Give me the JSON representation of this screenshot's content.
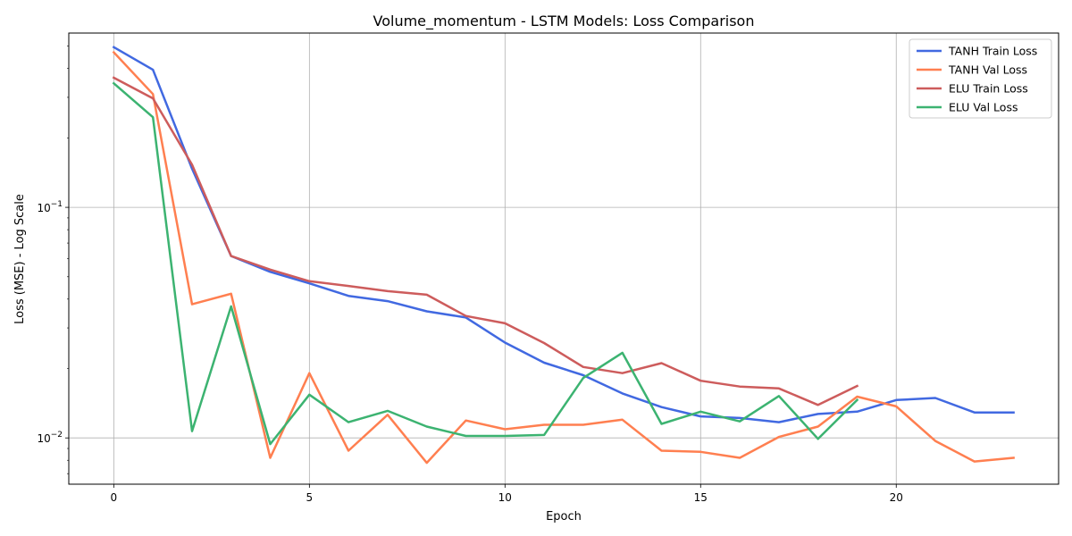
{
  "chart_data": {
    "type": "line",
    "title": "Volume_momentum - LSTM Models: Loss Comparison",
    "xlabel": "Epoch",
    "ylabel": "Loss (MSE) - Log Scale",
    "yscale": "log",
    "xlim": [
      -1.15,
      24.15
    ],
    "ylim": [
      0.0063,
      0.57
    ],
    "grid": true,
    "legend": "top-right",
    "x_ticks": [
      0,
      5,
      10,
      15,
      20
    ],
    "x_tick_labels": [
      "0",
      "5",
      "10",
      "15",
      "20"
    ],
    "y_ticks": [
      0.1,
      0.01
    ],
    "y_tick_labels": [
      {
        "base": "10",
        "exp": "−1"
      },
      {
        "base": "10",
        "exp": "−2"
      }
    ],
    "series": [
      {
        "name": "TANH Train Loss",
        "color": "#4169e1",
        "x": [
          0,
          1,
          2,
          3,
          4,
          5,
          6,
          7,
          8,
          9,
          10,
          11,
          12,
          13,
          14,
          15,
          16,
          17,
          18,
          19,
          20,
          21,
          22,
          23
        ],
        "values": [
          0.495,
          0.395,
          0.147,
          0.0615,
          0.0525,
          0.0468,
          0.0413,
          0.0392,
          0.0354,
          0.0333,
          0.0259,
          0.0212,
          0.0187,
          0.0156,
          0.0136,
          0.0124,
          0.0122,
          0.0117,
          0.0127,
          0.013,
          0.0146,
          0.0149,
          0.0129,
          0.0129
        ]
      },
      {
        "name": "TANH Val Loss",
        "color": "#ff7f50",
        "x": [
          0,
          1,
          2,
          3,
          4,
          5,
          6,
          7,
          8,
          9,
          10,
          11,
          12,
          13,
          14,
          15,
          16,
          17,
          18,
          19,
          20,
          21,
          22,
          23
        ],
        "values": [
          0.47,
          0.31,
          0.038,
          0.0422,
          0.0082,
          0.0191,
          0.0088,
          0.0126,
          0.0078,
          0.0119,
          0.0109,
          0.0114,
          0.0114,
          0.012,
          0.0088,
          0.0087,
          0.0082,
          0.0101,
          0.0112,
          0.0151,
          0.0137,
          0.0097,
          0.0079,
          0.0082
        ]
      },
      {
        "name": "ELU Train Loss",
        "color": "#cd5c5c",
        "x": [
          0,
          1,
          2,
          3,
          4,
          5,
          6,
          7,
          8,
          9,
          10,
          11,
          12,
          13,
          14,
          15,
          16,
          17,
          18,
          19
        ],
        "values": [
          0.365,
          0.297,
          0.153,
          0.0615,
          0.0537,
          0.0478,
          0.0456,
          0.0433,
          0.0418,
          0.0338,
          0.0314,
          0.0258,
          0.0203,
          0.0191,
          0.0211,
          0.0177,
          0.0167,
          0.0164,
          0.0139,
          0.0168
        ]
      },
      {
        "name": "ELU Val Loss",
        "color": "#3cb371",
        "x": [
          0,
          1,
          2,
          3,
          4,
          5,
          6,
          7,
          8,
          9,
          10,
          11,
          12,
          13,
          14,
          15,
          16,
          17,
          18,
          19
        ],
        "values": [
          0.345,
          0.246,
          0.0107,
          0.0372,
          0.0094,
          0.0154,
          0.0117,
          0.0131,
          0.0112,
          0.0102,
          0.0102,
          0.0103,
          0.0182,
          0.0234,
          0.0115,
          0.013,
          0.0118,
          0.0152,
          0.0099,
          0.0146
        ]
      }
    ]
  }
}
